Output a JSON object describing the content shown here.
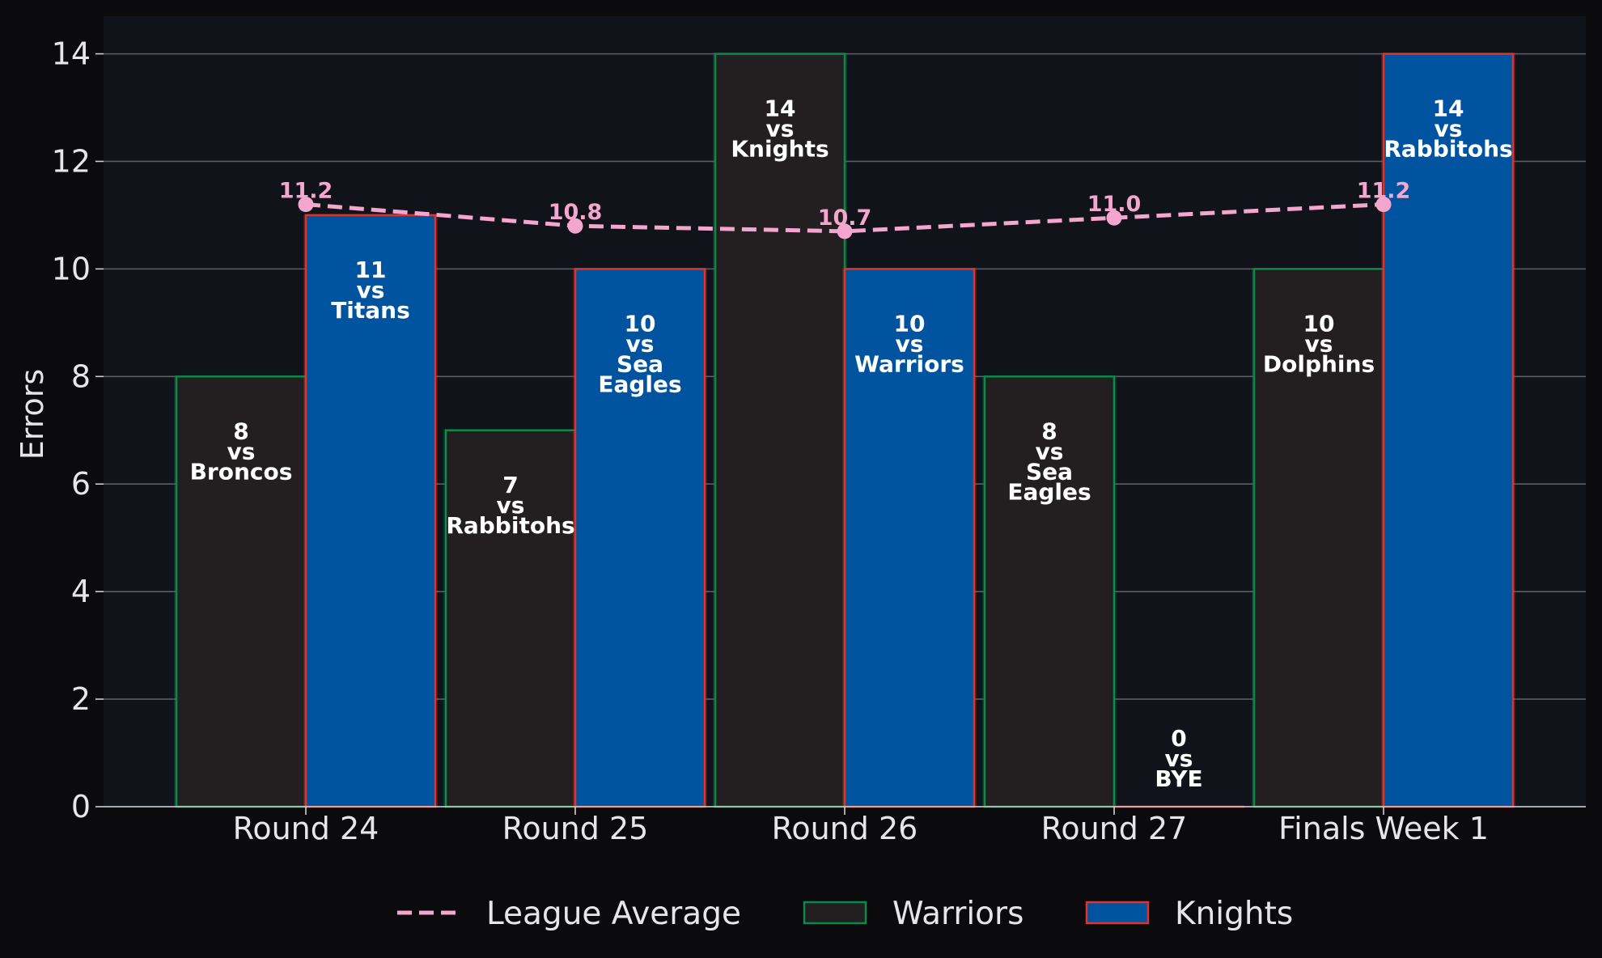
{
  "chart_data": {
    "type": "bar",
    "categories": [
      "Round 24",
      "Round 25",
      "Round 26",
      "Round 27",
      "Finals Week 1"
    ],
    "ylabel": "Errors",
    "ylim": [
      0,
      14.7
    ],
    "yticks": [
      "0",
      "2",
      "4",
      "6",
      "8",
      "10",
      "12",
      "14"
    ],
    "grid": true,
    "legend_position": "bottom-center",
    "series": [
      {
        "name": "Warriors",
        "kind": "bar",
        "fill": "#231f20",
        "edge": "#0a8a4a",
        "values": [
          8,
          7,
          14,
          8,
          10
        ],
        "labels": [
          [
            "8",
            "vs",
            "Broncos"
          ],
          [
            "7",
            "vs",
            "Rabbitohs"
          ],
          [
            "14",
            "vs",
            "Knights"
          ],
          [
            "8",
            "vs",
            "Sea",
            "Eagles"
          ],
          [
            "10",
            "vs",
            "Dolphins"
          ]
        ]
      },
      {
        "name": "Knights",
        "kind": "bar",
        "fill": "#00539f",
        "edge": "#e1322b",
        "values": [
          11,
          10,
          10,
          0,
          14
        ],
        "labels": [
          [
            "11",
            "vs",
            "Titans"
          ],
          [
            "10",
            "vs",
            "Sea",
            "Eagles"
          ],
          [
            "10",
            "vs",
            "Warriors"
          ],
          [
            "0",
            "vs",
            "BYE"
          ],
          [
            "14",
            "vs",
            "Rabbitohs"
          ]
        ]
      },
      {
        "name": "League Average",
        "kind": "line",
        "color": "#f4a6cf",
        "values": [
          11.2,
          10.8,
          10.7,
          10.95,
          11.2
        ],
        "labels": [
          "11.2",
          "10.8",
          "10.7",
          "11.0",
          "11.2"
        ]
      }
    ],
    "legend": [
      "League Average",
      "Warriors",
      "Knights"
    ]
  }
}
